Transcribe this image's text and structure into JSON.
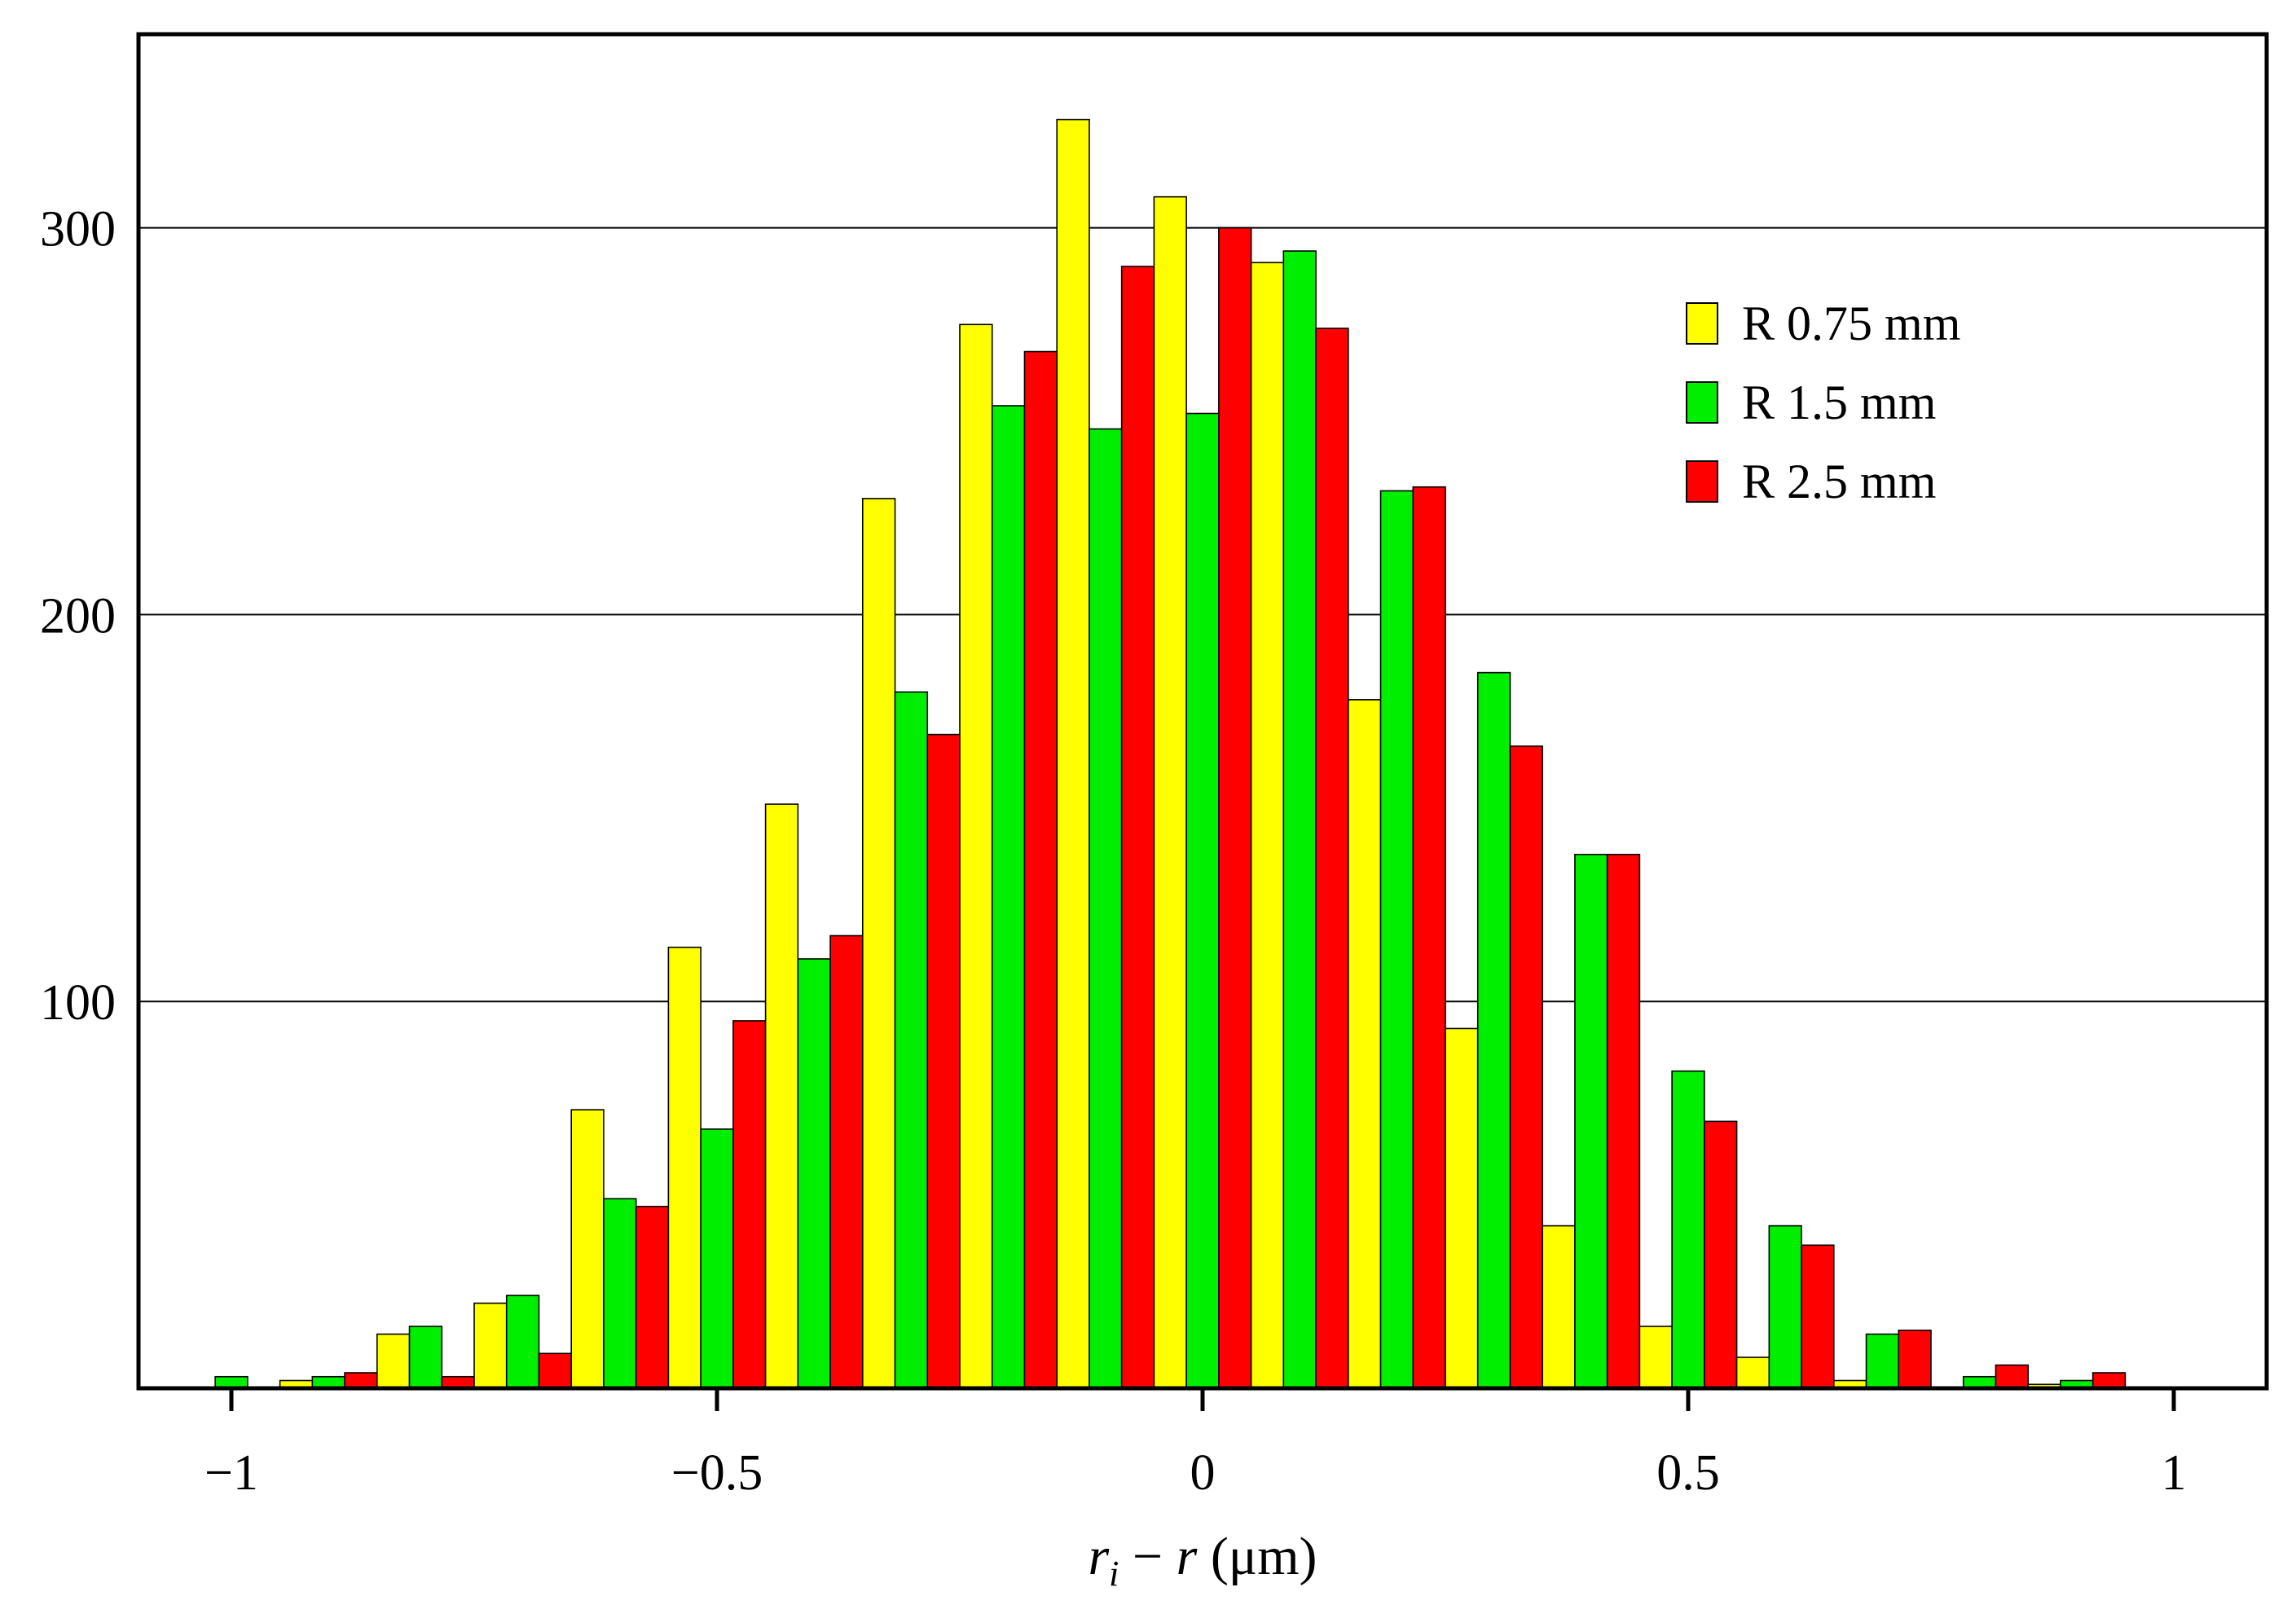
{
  "chart_data": {
    "type": "bar",
    "title": "",
    "xlabel": {
      "var": "r",
      "sub": "i",
      "rest": " − ",
      "var2": "r",
      "unit": " (μm)"
    },
    "ylabel": "",
    "xlim": [
      -1.1,
      1.1
    ],
    "ylim": [
      0,
      350
    ],
    "grid": {
      "y": true,
      "x": false
    },
    "legend_position": "top-right",
    "x_ticks": [
      {
        "value": -1,
        "label": "−1"
      },
      {
        "value": -0.5,
        "label": "−0.5"
      },
      {
        "value": 0,
        "label": "0"
      },
      {
        "value": 0.5,
        "label": "0.5"
      },
      {
        "value": 1,
        "label": "1"
      }
    ],
    "y_ticks": [
      {
        "value": 100,
        "label": "100"
      },
      {
        "value": 200,
        "label": "200"
      },
      {
        "value": 300,
        "label": "300"
      }
    ],
    "bin_width": 0.1,
    "bin_centers": [
      -1.0,
      -0.9,
      -0.8,
      -0.7,
      -0.6,
      -0.5,
      -0.4,
      -0.3,
      -0.2,
      -0.1,
      0.0,
      0.1,
      0.2,
      0.3,
      0.4,
      0.5,
      0.6,
      0.7,
      0.8,
      0.9,
      1.0
    ],
    "series": [
      {
        "name": "R 0.75 mm",
        "color": "#ffff00",
        "values": [
          0,
          2,
          14,
          22,
          72,
          114,
          151,
          230,
          275,
          328,
          308,
          291,
          178,
          93,
          42,
          16,
          8,
          2,
          0,
          1,
          0
        ]
      },
      {
        "name": "R 1.5 mm",
        "color": "#00ee00",
        "values": [
          3,
          3,
          16,
          24,
          49,
          67,
          111,
          180,
          254,
          248,
          252,
          294,
          232,
          185,
          138,
          82,
          42,
          14,
          3,
          2,
          0
        ]
      },
      {
        "name": "R 2.5 mm",
        "color": "#ff0000",
        "values": [
          0,
          4,
          3,
          9,
          47,
          95,
          117,
          169,
          268,
          290,
          300,
          274,
          233,
          166,
          138,
          69,
          37,
          15,
          6,
          4,
          0
        ]
      }
    ]
  }
}
